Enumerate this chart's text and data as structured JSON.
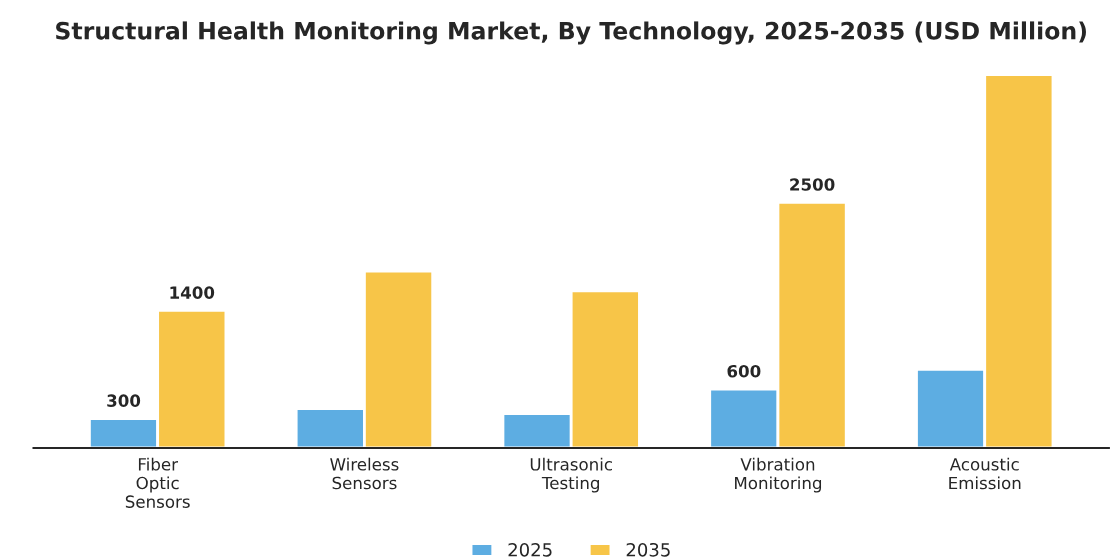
{
  "chart_data": {
    "type": "bar",
    "title": "Structural Health Monitoring Market, By Technology, 2025-2035 (USD Million)",
    "categories": [
      "Fiber\nOptic\nSensors",
      "Wireless\nSensors",
      "Ultrasonic\nTesting",
      "Vibration\nMonitoring",
      "Acoustic\nEmission"
    ],
    "series": [
      {
        "name": "2025",
        "color": "#5dade2",
        "values": [
          300,
          400,
          350,
          600,
          800
        ],
        "value_labels": [
          "300",
          null,
          null,
          "600",
          null
        ]
      },
      {
        "name": "2035",
        "color": "#f7c548",
        "values": [
          1400,
          1800,
          1600,
          2500,
          3800
        ],
        "value_labels": [
          "1400",
          null,
          null,
          "2500",
          null
        ]
      }
    ],
    "legend": "bottom",
    "grid": false
  }
}
